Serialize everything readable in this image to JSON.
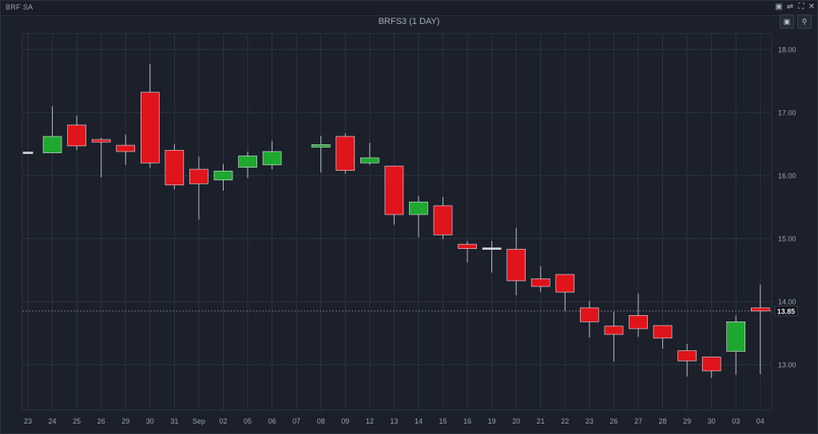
{
  "app_title": "BRF SA",
  "chart_title": "BRFS3 (1 DAY)",
  "window_icons": [
    "maximize-icon",
    "settings-sliders-icon",
    "fullscreen-icon",
    "close-icon"
  ],
  "tool_icons": [
    "lock-icon",
    "search-icon"
  ],
  "colors": {
    "up": "#1fa82f",
    "down": "#e0141b",
    "background": "#1b202b",
    "grid": "#2b3342",
    "axis_text": "#9ba3b0",
    "wick": "#b8bec8",
    "doji": "#cfd4dc"
  },
  "chart_data": {
    "type": "candlestick",
    "title": "BRFS3 (1 DAY)",
    "ylim": [
      12.25,
      18.25
    ],
    "yticks": [
      "18.00",
      "17.00",
      "16.00",
      "15.00",
      "14.00",
      "13.00"
    ],
    "last_price": "13.85",
    "grid": true,
    "categories": [
      "23",
      "24",
      "25",
      "26",
      "29",
      "30",
      "31",
      "Sep",
      "02",
      "05",
      "06",
      "07",
      "08",
      "09",
      "12",
      "13",
      "14",
      "15",
      "16",
      "19",
      "20",
      "21",
      "22",
      "23",
      "26",
      "27",
      "28",
      "29",
      "30",
      "03",
      "04"
    ],
    "candles": [
      {
        "open": 16.36,
        "high": 16.36,
        "low": 16.36,
        "close": 16.36
      },
      {
        "open": 16.36,
        "high": 17.1,
        "low": 16.36,
        "close": 16.62
      },
      {
        "open": 16.8,
        "high": 16.95,
        "low": 16.4,
        "close": 16.47
      },
      {
        "open": 16.57,
        "high": 16.6,
        "low": 15.97,
        "close": 16.53
      },
      {
        "open": 16.48,
        "high": 16.65,
        "low": 16.17,
        "close": 16.38
      },
      {
        "open": 17.32,
        "high": 17.77,
        "low": 16.12,
        "close": 16.2
      },
      {
        "open": 16.4,
        "high": 16.5,
        "low": 15.78,
        "close": 15.85
      },
      {
        "open": 16.1,
        "high": 16.3,
        "low": 15.3,
        "close": 15.87
      },
      {
        "open": 15.93,
        "high": 16.18,
        "low": 15.76,
        "close": 16.07
      },
      {
        "open": 16.13,
        "high": 16.38,
        "low": 15.96,
        "close": 16.31
      },
      {
        "open": 16.17,
        "high": 16.55,
        "low": 16.1,
        "close": 16.38
      },
      {
        "open": null,
        "high": null,
        "low": null,
        "close": null
      },
      {
        "open": 16.45,
        "high": 16.63,
        "low": 16.05,
        "close": 16.49
      },
      {
        "open": 16.62,
        "high": 16.67,
        "low": 16.03,
        "close": 16.08
      },
      {
        "open": 16.2,
        "high": 16.52,
        "low": 16.17,
        "close": 16.28
      },
      {
        "open": 16.15,
        "high": 16.15,
        "low": 15.22,
        "close": 15.38
      },
      {
        "open": 15.38,
        "high": 15.68,
        "low": 15.02,
        "close": 15.58
      },
      {
        "open": 15.52,
        "high": 15.66,
        "low": 14.99,
        "close": 15.06
      },
      {
        "open": 14.91,
        "high": 14.96,
        "low": 14.62,
        "close": 14.84
      },
      {
        "open": 14.84,
        "high": 14.96,
        "low": 14.46,
        "close": 14.84
      },
      {
        "open": 14.83,
        "high": 15.17,
        "low": 14.1,
        "close": 14.33
      },
      {
        "open": 14.36,
        "high": 14.56,
        "low": 14.15,
        "close": 14.24
      },
      {
        "open": 14.43,
        "high": 14.43,
        "low": 13.85,
        "close": 14.15
      },
      {
        "open": 13.9,
        "high": 14.01,
        "low": 13.43,
        "close": 13.68
      },
      {
        "open": 13.61,
        "high": 13.84,
        "low": 13.05,
        "close": 13.48
      },
      {
        "open": 13.78,
        "high": 14.13,
        "low": 13.44,
        "close": 13.57
      },
      {
        "open": 13.62,
        "high": 13.62,
        "low": 13.25,
        "close": 13.42
      },
      {
        "open": 13.22,
        "high": 13.33,
        "low": 12.81,
        "close": 13.06
      },
      {
        "open": 13.12,
        "high": 13.12,
        "low": 12.79,
        "close": 12.9
      },
      {
        "open": 13.21,
        "high": 13.78,
        "low": 12.84,
        "close": 13.68
      },
      {
        "open": 13.9,
        "high": 14.27,
        "low": 12.85,
        "close": 13.85
      }
    ]
  }
}
